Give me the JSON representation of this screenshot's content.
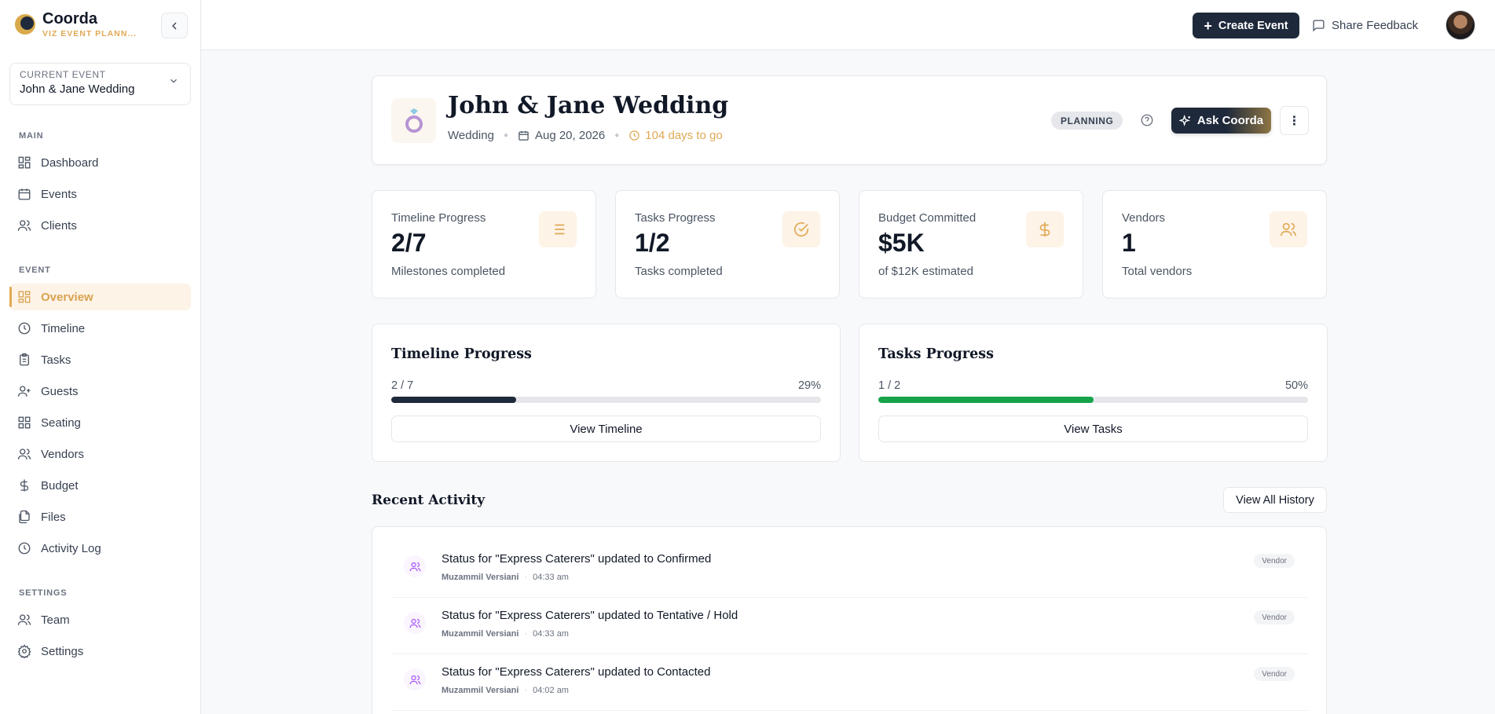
{
  "brand": {
    "name": "Coorda",
    "tagline": "VIZ EVENT PLANN..."
  },
  "current_event": {
    "label": "CURRENT EVENT",
    "value": "John & Jane Wedding"
  },
  "nav": {
    "main_label": "MAIN",
    "main": [
      "Dashboard",
      "Events",
      "Clients"
    ],
    "event_label": "EVENT",
    "event": [
      "Overview",
      "Timeline",
      "Tasks",
      "Guests",
      "Seating",
      "Vendors",
      "Budget",
      "Files",
      "Activity Log"
    ],
    "settings_label": "SETTINGS",
    "settings": [
      "Team",
      "Settings"
    ],
    "active": "Overview"
  },
  "topbar": {
    "create_label": "Create Event",
    "feedback_label": "Share Feedback"
  },
  "event": {
    "title": "John & Jane Wedding",
    "type": "Wedding",
    "date": "Aug 20, 2026",
    "countdown": "104 days to go",
    "status": "PLANNING",
    "ask_label": "Ask Coorda"
  },
  "stats": [
    {
      "title": "Timeline Progress",
      "value": "2/7",
      "sub": "Milestones completed",
      "icon": "list-icon"
    },
    {
      "title": "Tasks Progress",
      "value": "1/2",
      "sub": "Tasks completed",
      "icon": "check-circle-icon"
    },
    {
      "title": "Budget Committed",
      "value": "$5K",
      "sub": "of $12K estimated",
      "icon": "dollar-icon"
    },
    {
      "title": "Vendors",
      "value": "1",
      "sub": "Total vendors",
      "icon": "users-icon"
    }
  ],
  "progress": [
    {
      "title": "Timeline Progress",
      "count": "2 / 7",
      "percent_label": "29%",
      "fraction": 0.29,
      "color": "#1e293b",
      "button": "View Timeline"
    },
    {
      "title": "Tasks Progress",
      "count": "1 / 2",
      "percent_label": "50%",
      "fraction": 0.5,
      "color": "#16a34a",
      "button": "View Tasks"
    }
  ],
  "recent": {
    "title": "Recent Activity",
    "history_label": "View All History",
    "items": [
      {
        "text": "Status for \"Express Caterers\" updated to Confirmed",
        "user": "Muzammil Versiani",
        "time": "04:33 am",
        "tag": "Vendor"
      },
      {
        "text": "Status for \"Express Caterers\" updated to Tentative / Hold",
        "user": "Muzammil Versiani",
        "time": "04:33 am",
        "tag": "Vendor"
      },
      {
        "text": "Status for \"Express Caterers\" updated to Contacted",
        "user": "Muzammil Versiani",
        "time": "04:02 am",
        "tag": "Vendor"
      }
    ]
  },
  "colors": {
    "accent": "#e0a954",
    "dark": "#1e293b",
    "success": "#16a34a",
    "activity_icon": "#a855f7"
  }
}
